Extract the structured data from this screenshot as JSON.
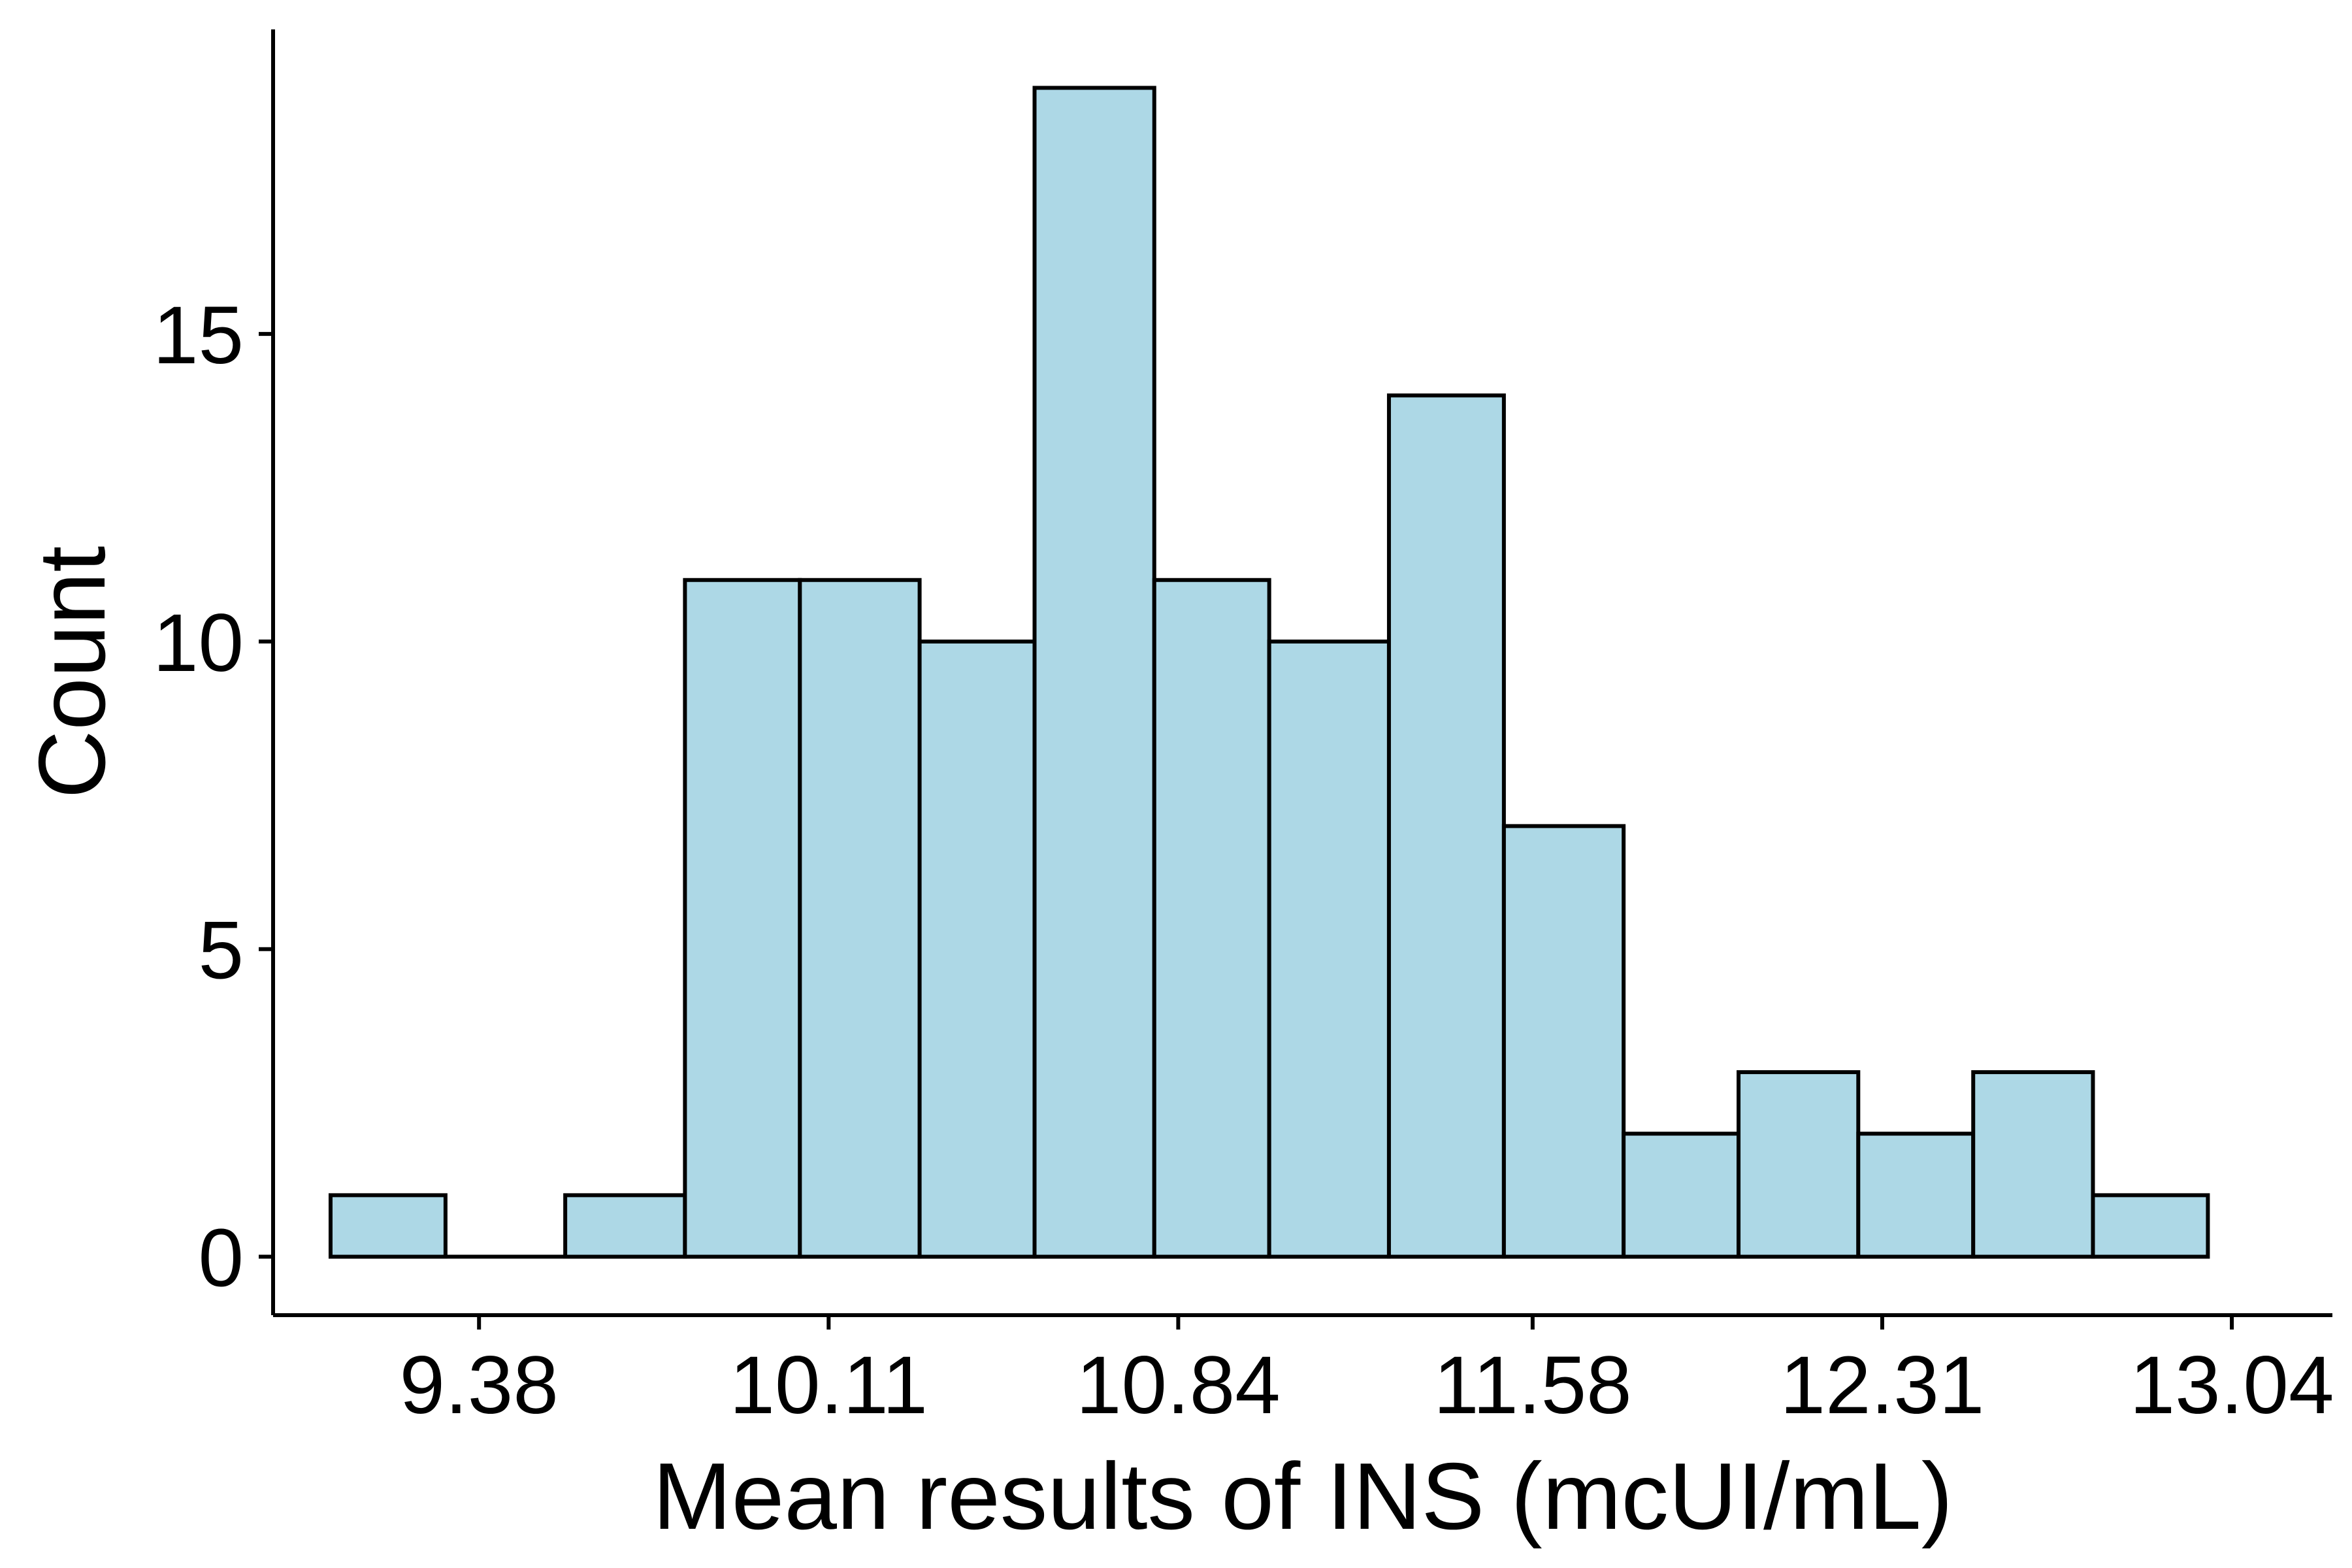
{
  "chart_data": {
    "type": "bar",
    "subtype": "histogram",
    "title": "",
    "xlabel": "Mean results of INS (mcUI/mL)",
    "ylabel": "Count",
    "x_ticks": [
      9.38,
      10.11,
      10.84,
      11.58,
      12.31,
      13.04
    ],
    "x_tick_labels": [
      "9.38",
      "10.11",
      "10.84",
      "11.58",
      "12.31",
      "13.04"
    ],
    "y_ticks": [
      0,
      5,
      10,
      15
    ],
    "y_tick_labels": [
      "0",
      "5",
      "10",
      "15"
    ],
    "xlim": [
      8.95,
      13.25
    ],
    "ylim": [
      -0.95,
      19.95
    ],
    "bins": [
      {
        "x0": 9.07,
        "x1": 9.31,
        "count": 1
      },
      {
        "x0": 9.31,
        "x1": 9.56,
        "count": 0
      },
      {
        "x0": 9.56,
        "x1": 9.81,
        "count": 1
      },
      {
        "x0": 9.81,
        "x1": 10.05,
        "count": 11
      },
      {
        "x0": 10.05,
        "x1": 10.3,
        "count": 11
      },
      {
        "x0": 10.3,
        "x1": 10.54,
        "count": 10
      },
      {
        "x0": 10.54,
        "x1": 10.79,
        "count": 19
      },
      {
        "x0": 10.79,
        "x1": 11.03,
        "count": 11
      },
      {
        "x0": 11.03,
        "x1": 11.28,
        "count": 10
      },
      {
        "x0": 11.28,
        "x1": 11.52,
        "count": 14
      },
      {
        "x0": 11.52,
        "x1": 11.77,
        "count": 7
      },
      {
        "x0": 11.77,
        "x1": 12.01,
        "count": 2
      },
      {
        "x0": 12.01,
        "x1": 12.26,
        "count": 3
      },
      {
        "x0": 12.26,
        "x1": 12.5,
        "count": 2
      },
      {
        "x0": 12.5,
        "x1": 12.75,
        "count": 3
      },
      {
        "x0": 12.75,
        "x1": 12.99,
        "count": 1
      }
    ],
    "bar_fill": "#add8e6",
    "bar_stroke": "#000000",
    "grid": false,
    "legend": "none"
  }
}
